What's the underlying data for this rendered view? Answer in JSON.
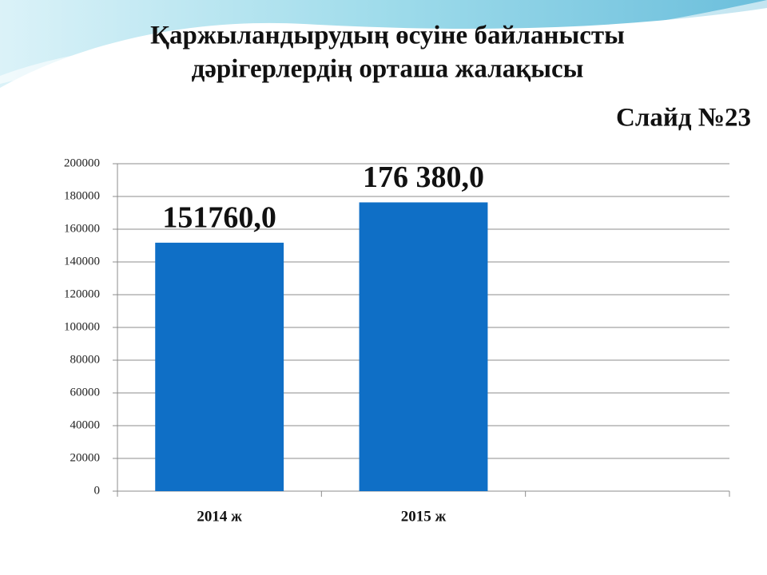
{
  "chart_data": {
    "type": "bar",
    "title": [
      "Қаржыландырудың өсуіне байланысты",
      "дәрігерлердің орташа жалақысы"
    ],
    "annotations": [
      "Слайд №23"
    ],
    "categories": [
      "2014 ж",
      "2015 ж",
      null
    ],
    "values": [
      151760,
      176380,
      null
    ],
    "value_labels": [
      "151760,0",
      "176 380,0",
      null
    ],
    "color": "#0f6fc6",
    "ylim": [
      0,
      200000
    ],
    "yticks": [
      0,
      20000,
      40000,
      60000,
      80000,
      100000,
      120000,
      140000,
      160000,
      180000,
      200000
    ],
    "grid": true
  }
}
